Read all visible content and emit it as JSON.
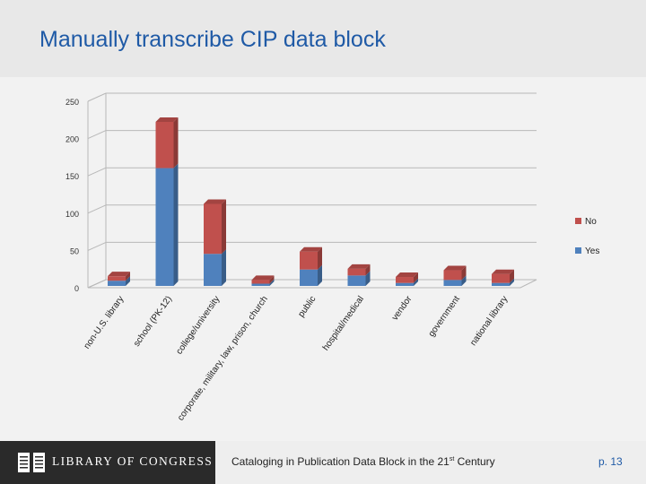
{
  "slide": {
    "title": "Manually transcribe CIP data block"
  },
  "footer": {
    "logo_text": "LIBRARY OF CONGRESS",
    "caption_main": "Cataloging in Publication Data Block in the 21",
    "caption_sup": "st",
    "caption_tail": " Century",
    "page_number": "p. 13"
  },
  "colors": {
    "no": "#c0504d",
    "yes": "#4f81bd",
    "title": "#1f5aa6"
  },
  "chart_data": {
    "type": "bar",
    "stacked": true,
    "three_d": true,
    "title": "",
    "xlabel": "",
    "ylabel": "",
    "ylim": [
      0,
      250
    ],
    "yticks": [
      0,
      50,
      100,
      150,
      200,
      250
    ],
    "grid": true,
    "legend_position": "right",
    "categories": [
      "non-U.S. library",
      "school (PK-12)",
      "college/university",
      "corporate, military, law, prison, church",
      "public",
      "hospital/medical",
      "vendor",
      "government",
      "national library"
    ],
    "series": [
      {
        "name": "Yes",
        "values": [
          7,
          158,
          43,
          3,
          22,
          14,
          4,
          8,
          4
        ]
      },
      {
        "name": "No",
        "values": [
          6,
          62,
          67,
          5,
          24,
          9,
          8,
          13,
          12
        ]
      }
    ],
    "legend": [
      "No",
      "Yes"
    ]
  }
}
